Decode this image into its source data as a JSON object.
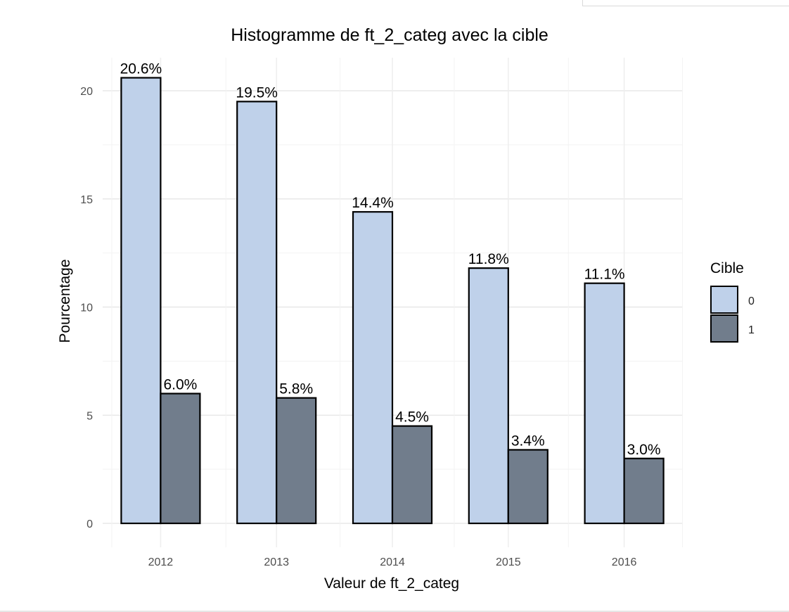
{
  "chart_data": {
    "type": "bar",
    "title": "Histogramme de ft_2_categ avec la cible",
    "xlabel": "Valeur de ft_2_categ",
    "ylabel": "Pourcentage",
    "categories": [
      "2012",
      "2013",
      "2014",
      "2015",
      "2016"
    ],
    "series": [
      {
        "name": "0",
        "values": [
          20.6,
          19.5,
          14.4,
          11.8,
          11.1
        ],
        "labels": [
          "20.6%",
          "19.5%",
          "14.4%",
          "11.8%",
          "11.1%"
        ],
        "color": "#bfd1ea"
      },
      {
        "name": "1",
        "values": [
          6.0,
          5.8,
          4.5,
          3.4,
          3.0
        ],
        "labels": [
          "6.0%",
          "5.8%",
          "4.5%",
          "3.4%",
          "3.0%"
        ],
        "color": "#717d8c"
      }
    ],
    "ylim": [
      0,
      21.5
    ],
    "yticks": [
      0,
      5,
      10,
      15,
      20
    ],
    "grid": true,
    "legend": {
      "title": "Cible",
      "position": "right",
      "entries": [
        "0",
        "1"
      ]
    }
  }
}
